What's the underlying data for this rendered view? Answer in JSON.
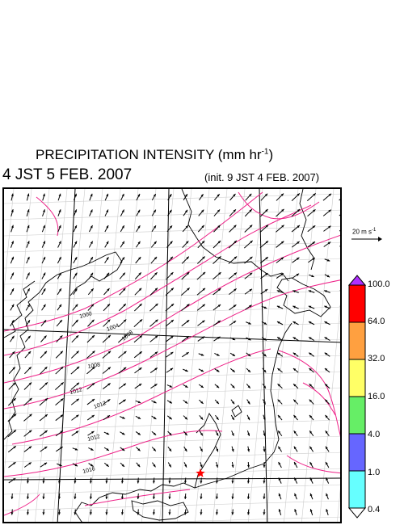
{
  "title": {
    "text": "PRECIPITATION INTENSITY (mm hr",
    "unit_exponent": "-1",
    "close": ")"
  },
  "valid_time": "4 JST 5 FEB. 2007",
  "init_time": "(init. 9 JST 4 FEB. 2007)",
  "wind_scale": {
    "text": "20 m s",
    "exponent": "-1"
  },
  "colorbar": {
    "labels": [
      "100.0",
      "64.0",
      "32.0",
      "16.0",
      "4.0",
      "1.0",
      "0.4"
    ],
    "colors": [
      "#ff0000",
      "#ffa040",
      "#ffff66",
      "#66ee66",
      "#6666ff",
      "#66ffff"
    ],
    "over_color": "#b030ff",
    "under_color": "#ffffff"
  },
  "isobars": {
    "color": "#ee2288",
    "labels": [
      "1000",
      "1004",
      "1008",
      "1008",
      "1012",
      "1012",
      "1012",
      "1016"
    ]
  },
  "marker": {
    "color": "#ff0000"
  },
  "colors": {
    "coast": "#000000",
    "grid": "#cccccc",
    "arrows": "#000000"
  }
}
